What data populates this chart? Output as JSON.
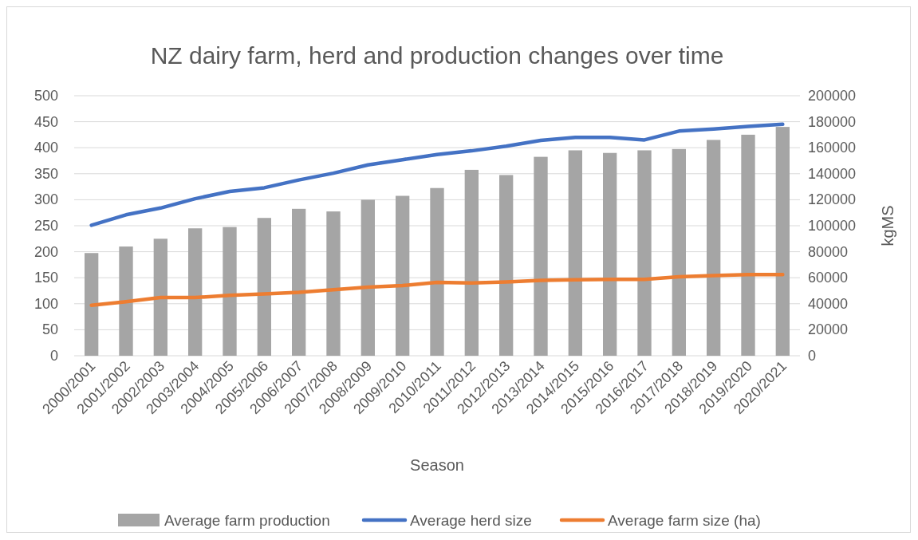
{
  "chart_data": {
    "type": "bar",
    "title": "NZ dairy farm, herd and production changes over time",
    "xlabel": "Season",
    "y2label": "kgMS",
    "categories": [
      "2000/2001",
      "2001/2002",
      "2002/2003",
      "2003/2004",
      "2004/2005",
      "2005/2006",
      "2006/2007",
      "2007/2008",
      "2008/2009",
      "2009/2010",
      "2010/2011",
      "2011/2012",
      "2012/2013",
      "2013/2014",
      "2014/2015",
      "2015/2016",
      "2016/2017",
      "2017/2018",
      "2018/2019",
      "2019/2020",
      "2020/2021"
    ],
    "series": [
      {
        "name": "Average farm production",
        "axis": "y2",
        "color": "#a5a5a5",
        "values": [
          79000,
          84000,
          90000,
          98000,
          99000,
          106000,
          113000,
          111000,
          120000,
          123000,
          129000,
          143000,
          139000,
          153000,
          158000,
          156000,
          158000,
          159000,
          166000,
          170000,
          176000
        ]
      },
      {
        "name": "Average herd size",
        "type": "line",
        "color": "#4472c4",
        "values": [
          251,
          271,
          284,
          302,
          316,
          323,
          338,
          351,
          367,
          377,
          387,
          394,
          403,
          414,
          420,
          420,
          415,
          432,
          436,
          441,
          445
        ]
      },
      {
        "name": "Average farm size (ha)",
        "type": "line",
        "color": "#ed7d31",
        "values": [
          97,
          104,
          112,
          112,
          116,
          119,
          122,
          127,
          132,
          135,
          141,
          140,
          142,
          145,
          146,
          147,
          147,
          152,
          154,
          156,
          156
        ]
      }
    ],
    "ylim": [
      0,
      500
    ],
    "yticks": [
      0,
      50,
      100,
      150,
      200,
      250,
      300,
      350,
      400,
      450,
      500
    ],
    "y2lim": [
      0,
      200000
    ],
    "y2ticks": [
      0,
      20000,
      40000,
      60000,
      80000,
      100000,
      120000,
      140000,
      160000,
      180000,
      200000
    ],
    "grid": "y",
    "legend": "bottom"
  }
}
